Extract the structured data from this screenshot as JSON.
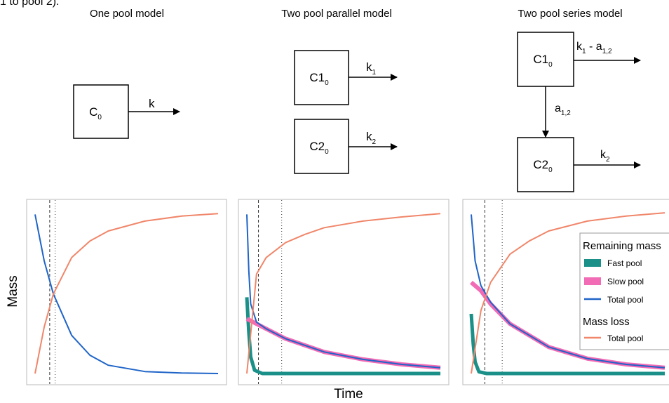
{
  "caption_fragment": "1 to pool 2).",
  "models": [
    {
      "title": "One pool model",
      "boxes": [
        {
          "main": "C",
          "sub": "0"
        }
      ],
      "arrows": [
        {
          "main": "k",
          "sub": ""
        }
      ]
    },
    {
      "title": "Two pool parallel model",
      "boxes": [
        {
          "main": "C1",
          "sub": "0"
        },
        {
          "main": "C2",
          "sub": "0"
        }
      ],
      "arrows": [
        {
          "main": "k",
          "sub": "1"
        },
        {
          "main": "k",
          "sub": "2"
        }
      ]
    },
    {
      "title": "Two pool series model",
      "boxes": [
        {
          "main": "C1",
          "sub": "0"
        },
        {
          "main": "C2",
          "sub": "0"
        }
      ],
      "arrows": [
        {
          "main": "k",
          "sub": "1",
          "suffix": " - a",
          "suffix_sub": "1,2"
        },
        {
          "main": "a",
          "sub": "1,2"
        },
        {
          "main": "k",
          "sub": "2"
        }
      ]
    }
  ],
  "axis": {
    "ylabel": "Mass",
    "xlabel": "Time"
  },
  "legend": {
    "remaining_title": "Remaining mass",
    "items_remaining": [
      "Fast pool",
      "Slow pool",
      "Total pool"
    ],
    "loss_title": "Mass loss",
    "items_loss": [
      "Total pool"
    ]
  },
  "colors": {
    "fast": "#1a9088",
    "slow": "#f26bb5",
    "total_remaining": "#1f64c8",
    "loss": "#f0866a",
    "panel_bg": "#ffffff",
    "panel_border": "#bbbbbb",
    "guide": "#333333"
  },
  "chart_data": [
    {
      "type": "line",
      "panel": "one-pool",
      "series": [
        {
          "name": "Total pool",
          "kind": "remaining",
          "x": [
            0,
            0.05,
            0.1,
            0.2,
            0.3,
            0.4,
            0.6,
            0.8,
            1.0
          ],
          "y": [
            0.96,
            0.68,
            0.48,
            0.23,
            0.11,
            0.05,
            0.012,
            0.003,
            0.0
          ]
        },
        {
          "name": "Total pool",
          "kind": "loss",
          "x": [
            0,
            0.05,
            0.1,
            0.2,
            0.3,
            0.4,
            0.6,
            0.8,
            1.0
          ],
          "y": [
            0.0,
            0.28,
            0.48,
            0.7,
            0.8,
            0.86,
            0.92,
            0.95,
            0.965
          ]
        }
      ],
      "guides": [
        0.08,
        0.11
      ]
    },
    {
      "type": "line",
      "panel": "two-pool-parallel",
      "series": [
        {
          "name": "Fast pool",
          "kind": "remaining",
          "x": [
            0,
            0.01,
            0.02,
            0.04,
            0.08,
            0.15,
            1.0
          ],
          "y": [
            0.46,
            0.25,
            0.1,
            0.02,
            0.0,
            0.0,
            0.0
          ]
        },
        {
          "name": "Slow pool",
          "kind": "remaining",
          "x": [
            0,
            0.05,
            0.1,
            0.2,
            0.4,
            0.6,
            0.8,
            1.0
          ],
          "y": [
            0.33,
            0.3,
            0.27,
            0.21,
            0.13,
            0.085,
            0.055,
            0.035
          ]
        },
        {
          "name": "Total pool",
          "kind": "remaining",
          "x": [
            0,
            0.01,
            0.02,
            0.05,
            0.1,
            0.2,
            0.4,
            0.6,
            0.8,
            1.0
          ],
          "y": [
            0.96,
            0.62,
            0.42,
            0.31,
            0.27,
            0.21,
            0.13,
            0.085,
            0.055,
            0.035
          ]
        },
        {
          "name": "Total pool",
          "kind": "loss",
          "x": [
            0,
            0.05,
            0.1,
            0.2,
            0.3,
            0.4,
            0.6,
            0.8,
            1.0
          ],
          "y": [
            0.0,
            0.6,
            0.7,
            0.79,
            0.84,
            0.88,
            0.92,
            0.945,
            0.965
          ]
        }
      ],
      "guides": [
        0.06,
        0.18
      ]
    },
    {
      "type": "line",
      "panel": "two-pool-series",
      "series": [
        {
          "name": "Fast pool",
          "kind": "remaining",
          "x": [
            0,
            0.01,
            0.02,
            0.04,
            0.08,
            0.15,
            1.0
          ],
          "y": [
            0.36,
            0.18,
            0.07,
            0.01,
            0.0,
            0.0,
            0.0
          ]
        },
        {
          "name": "Slow pool",
          "kind": "remaining",
          "x": [
            0,
            0.05,
            0.1,
            0.2,
            0.4,
            0.6,
            0.8,
            1.0
          ],
          "y": [
            0.55,
            0.5,
            0.42,
            0.3,
            0.16,
            0.09,
            0.055,
            0.035
          ]
        },
        {
          "name": "Total pool",
          "kind": "remaining",
          "x": [
            0,
            0.01,
            0.02,
            0.05,
            0.1,
            0.2,
            0.4,
            0.6,
            0.8,
            1.0
          ],
          "y": [
            0.96,
            0.82,
            0.68,
            0.53,
            0.43,
            0.3,
            0.16,
            0.09,
            0.055,
            0.035
          ]
        },
        {
          "name": "Total pool",
          "kind": "loss",
          "x": [
            0,
            0.05,
            0.1,
            0.2,
            0.3,
            0.4,
            0.6,
            0.8,
            1.0
          ],
          "y": [
            0.0,
            0.38,
            0.55,
            0.72,
            0.8,
            0.86,
            0.92,
            0.95,
            0.97
          ]
        }
      ],
      "guides": [
        0.07,
        0.16
      ]
    }
  ]
}
